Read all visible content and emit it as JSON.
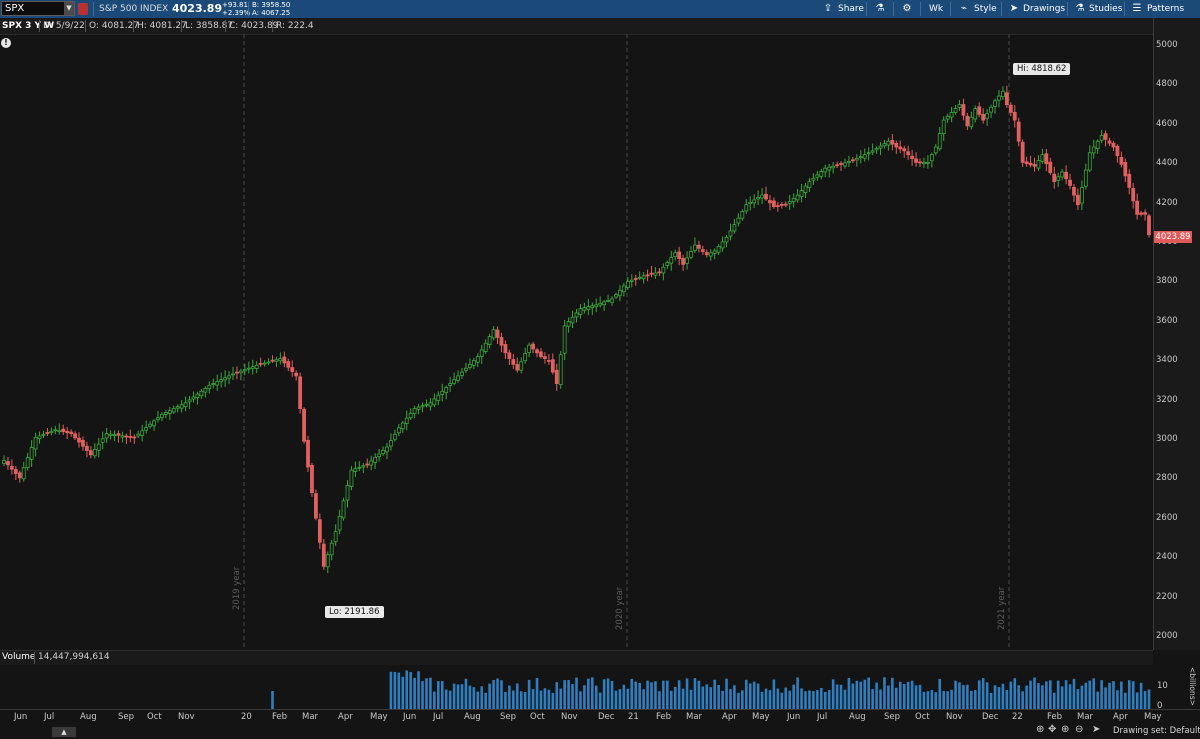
{
  "toolbar": {
    "symbol": "SPX",
    "symbol_name": "S&P 500 INDEX",
    "last": "4023.89",
    "change": "+93.81",
    "change_pct": "+2.39%",
    "bid": "B: 3958.50",
    "ask": "A: 4067.25",
    "share": "Share",
    "timeframe": "Wk",
    "style": "Style",
    "drawings": "Drawings",
    "studies": "Studies",
    "patterns": "Patterns"
  },
  "info": {
    "title": "SPX 3 Y W",
    "date": "D: 5/9/22",
    "open": "O: 4081.27",
    "high": "H: 4081.27",
    "low": "L: 3858.87",
    "close": "C: 4023.89",
    "range": "R: 222.4"
  },
  "price_axis": {
    "ticks": [
      "5000",
      "4800",
      "4600",
      "4400",
      "4200",
      "4000",
      "3800",
      "3600",
      "3400",
      "3200",
      "3000",
      "2800",
      "2600",
      "2400",
      "2200",
      "2000"
    ],
    "current": "4023.89"
  },
  "callouts": {
    "hi": "Hi: 4818.62",
    "lo": "Lo: 2191.86"
  },
  "year_markers": [
    "2019 year",
    "2020 year",
    "2021 year"
  ],
  "volume": {
    "label": "Volume",
    "value": "14,447,994,614",
    "axis_unit": "<billions>",
    "tick_10": "10",
    "tick_0": "0"
  },
  "x_axis": {
    "labels": [
      "Jun",
      "Jul",
      "Aug",
      "Sep",
      "Oct",
      "Nov",
      "20",
      "Feb",
      "Mar",
      "Apr",
      "May",
      "Jun",
      "Jul",
      "Aug",
      "Sep",
      "Oct",
      "Nov",
      "Dec",
      "21",
      "Feb",
      "Mar",
      "Apr",
      "May",
      "Jun",
      "Jul",
      "Aug",
      "Sep",
      "Oct",
      "Nov",
      "Dec",
      "22",
      "Feb",
      "Mar",
      "Apr",
      "May"
    ]
  },
  "status": {
    "drawing_set": "Drawing set: Default"
  },
  "colors": {
    "up": "#3aa83a",
    "down": "#e06060",
    "volume": "#2f7fc0",
    "toolbar": "#1b4a79"
  },
  "chart_data": {
    "type": "candlestick",
    "x": [
      "2019-06-03",
      "2022-05-09"
    ],
    "ylim": [
      2000,
      5000
    ],
    "anchors": [
      [
        0,
        2850
      ],
      [
        4,
        2760
      ],
      [
        8,
        2970
      ],
      [
        13,
        3010
      ],
      [
        17,
        2990
      ],
      [
        22,
        2880
      ],
      [
        26,
        2990
      ],
      [
        33,
        2970
      ],
      [
        40,
        3090
      ],
      [
        46,
        3150
      ],
      [
        52,
        3240
      ],
      [
        58,
        3300
      ],
      [
        64,
        3345
      ],
      [
        70,
        3380
      ],
      [
        74,
        3290
      ],
      [
        76,
        2950
      ],
      [
        79,
        2550
      ],
      [
        81,
        2300
      ],
      [
        84,
        2480
      ],
      [
        88,
        2800
      ],
      [
        92,
        2830
      ],
      [
        97,
        2920
      ],
      [
        100,
        3020
      ],
      [
        104,
        3120
      ],
      [
        108,
        3150
      ],
      [
        112,
        3230
      ],
      [
        116,
        3310
      ],
      [
        120,
        3390
      ],
      [
        124,
        3530
      ],
      [
        127,
        3410
      ],
      [
        130,
        3320
      ],
      [
        133,
        3450
      ],
      [
        136,
        3390
      ],
      [
        138,
        3370
      ],
      [
        140,
        3250
      ],
      [
        142,
        3550
      ],
      [
        146,
        3640
      ],
      [
        150,
        3660
      ],
      [
        154,
        3690
      ],
      [
        158,
        3780
      ],
      [
        162,
        3810
      ],
      [
        166,
        3830
      ],
      [
        170,
        3930
      ],
      [
        172,
        3870
      ],
      [
        175,
        3970
      ],
      [
        178,
        3920
      ],
      [
        180,
        3940
      ],
      [
        183,
        4010
      ],
      [
        186,
        4110
      ],
      [
        188,
        4180
      ],
      [
        192,
        4230
      ],
      [
        195,
        4170
      ],
      [
        198,
        4180
      ],
      [
        201,
        4230
      ],
      [
        204,
        4300
      ],
      [
        208,
        4370
      ],
      [
        212,
        4390
      ],
      [
        216,
        4420
      ],
      [
        220,
        4460
      ],
      [
        224,
        4510
      ],
      [
        226,
        4480
      ],
      [
        228,
        4460
      ],
      [
        231,
        4400
      ],
      [
        234,
        4400
      ],
      [
        236,
        4480
      ],
      [
        238,
        4620
      ],
      [
        242,
        4700
      ],
      [
        244,
        4590
      ],
      [
        246,
        4680
      ],
      [
        248,
        4620
      ],
      [
        251,
        4720
      ],
      [
        253,
        4770
      ],
      [
        254,
        4700
      ],
      [
        256,
        4620
      ],
      [
        258,
        4400
      ],
      [
        261,
        4380
      ],
      [
        263,
        4440
      ],
      [
        266,
        4300
      ],
      [
        268,
        4350
      ],
      [
        270,
        4280
      ],
      [
        272,
        4180
      ],
      [
        275,
        4450
      ],
      [
        278,
        4540
      ],
      [
        281,
        4480
      ],
      [
        283,
        4390
      ],
      [
        285,
        4270
      ],
      [
        287,
        4130
      ],
      [
        289,
        4130
      ],
      [
        290,
        4023.89
      ]
    ]
  }
}
